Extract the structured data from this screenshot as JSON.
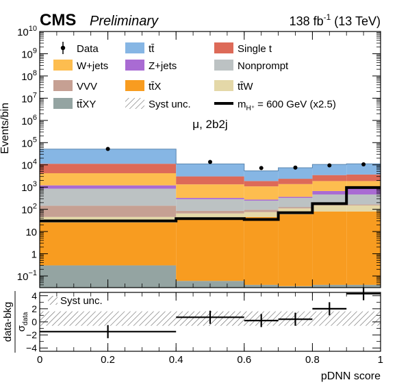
{
  "header": {
    "experiment": "CMS",
    "status": "Preliminary",
    "lumi_value": "138 fb",
    "lumi_exp": "-1",
    "energy": "(13 TeV)"
  },
  "chart_data": [
    {
      "type": "bar",
      "panel": "main",
      "stacked": true,
      "log_y": true,
      "ylabel": "Events/bin",
      "ylim": [
        0.03,
        10000000000.0
      ],
      "xlim": [
        0,
        1
      ],
      "annotation": "μ, 2b2j",
      "bin_edges": [
        0,
        0.4,
        0.6,
        0.7,
        0.8,
        0.9,
        1.0
      ],
      "y_ticks": [
        {
          "value": 0.1,
          "base": "10",
          "exp": "−1"
        },
        {
          "value": 1,
          "base": "1",
          "exp": ""
        },
        {
          "value": 10,
          "base": "10",
          "exp": ""
        },
        {
          "value": 100,
          "base": "10",
          "exp": "2"
        },
        {
          "value": 1000,
          "base": "10",
          "exp": "3"
        },
        {
          "value": 10000,
          "base": "10",
          "exp": "4"
        },
        {
          "value": 100000,
          "base": "10",
          "exp": "5"
        },
        {
          "value": 1000000,
          "base": "10",
          "exp": "6"
        },
        {
          "value": 10000000,
          "base": "10",
          "exp": "7"
        },
        {
          "value": 100000000,
          "base": "10",
          "exp": "8"
        },
        {
          "value": 1000000000,
          "base": "10",
          "exp": "9"
        },
        {
          "value": 10000000000,
          "base": "10",
          "exp": "10"
        }
      ],
      "stack_order": [
        "tt̄XY",
        "tt̄X",
        "tt̄W",
        "VVV",
        "Nonprompt",
        "Z+jets",
        "W+jets",
        "Single t",
        "tt̄"
      ],
      "series": [
        {
          "name": "tt̄XY",
          "color": "#94a4a2",
          "values": [
            0.3,
            0.06,
            0.04,
            0.035,
            0.04,
            0.04
          ]
        },
        {
          "name": "tt̄X",
          "color": "#f89c20",
          "values": [
            25,
            35,
            45,
            60,
            80,
            80
          ]
        },
        {
          "name": "tt̄W",
          "color": "#e4d8a8",
          "values": [
            20,
            30,
            30,
            50,
            70,
            70
          ]
        },
        {
          "name": "VVV",
          "color": "#c6a093",
          "values": [
            100,
            20,
            20,
            15,
            15,
            15
          ]
        },
        {
          "name": "Nonprompt",
          "color": "#bcc2c3",
          "values": [
            700,
            200,
            150,
            200,
            300,
            300
          ]
        },
        {
          "name": "Z+jets",
          "color": "#a96bd3",
          "values": [
            350,
            40,
            30,
            40,
            200,
            400
          ]
        },
        {
          "name": "W+jets",
          "color": "#fdbd4f",
          "values": [
            3000,
            1000,
            800,
            1000,
            1200,
            1000
          ]
        },
        {
          "name": "Single t",
          "color": "#dd6a58",
          "values": [
            7000,
            1700,
            800,
            1000,
            1600,
            1800
          ]
        },
        {
          "name": "tt̄",
          "color": "#86b6e4",
          "values": [
            40000,
            8000,
            3500,
            5000,
            7000,
            7500
          ]
        }
      ],
      "signal": {
        "name": "m_H⁺ = 600 GeV (x2.5)",
        "color": "#000000",
        "values": [
          30,
          38,
          35,
          70,
          180,
          950
        ]
      },
      "data": {
        "name": "Data",
        "x": [
          0.2,
          0.5,
          0.65,
          0.75,
          0.85,
          0.95
        ],
        "values": [
          52000,
          13500,
          7200,
          7500,
          9500,
          10500
        ]
      },
      "legend": [
        {
          "label": "Data",
          "kind": "data"
        },
        {
          "label": "tt̄",
          "kind": "fill",
          "color": "#86b6e4"
        },
        {
          "label": "Single t",
          "kind": "fill",
          "color": "#dd6a58"
        },
        {
          "label": "W+jets",
          "kind": "fill",
          "color": "#fdbd4f"
        },
        {
          "label": "Z+jets",
          "kind": "fill",
          "color": "#a96bd3"
        },
        {
          "label": "Nonprompt",
          "kind": "fill",
          "color": "#bcc2c3"
        },
        {
          "label": "VVV",
          "kind": "fill",
          "color": "#c6a093"
        },
        {
          "label": "tt̄X",
          "kind": "fill",
          "color": "#f89c20"
        },
        {
          "label": "tt̄W",
          "kind": "fill",
          "color": "#e4d8a8"
        },
        {
          "label": "tt̄XY",
          "kind": "fill",
          "color": "#94a4a2"
        },
        {
          "label": "Syst unc.",
          "kind": "hatch"
        },
        {
          "label": "m",
          "sub": "H⁺",
          "suffix": " = 600 GeV (x2.5)",
          "kind": "line"
        }
      ]
    },
    {
      "type": "scatter",
      "panel": "ratio",
      "xlabel": "pDNN score",
      "ylabel_top": "data-bkg",
      "ylabel_bottom_sym": "σ",
      "ylabel_bottom_sub": "data",
      "ylim": [
        -4.5,
        4.5
      ],
      "y_ticks": [
        -4,
        -2,
        0,
        2,
        4
      ],
      "y_tick_labels": [
        "−4",
        "−2",
        "0",
        "2",
        "4"
      ],
      "x_ticks": [
        0,
        0.2,
        0.4,
        0.6,
        0.8,
        1.0
      ],
      "x_tick_labels": [
        "0",
        "0.2",
        "0.4",
        "0.6",
        "0.8",
        "1"
      ],
      "syst_band": [
        -0.6,
        1.6
      ],
      "syst_label": "Syst unc.",
      "points": [
        {
          "x": 0.2,
          "xlo": 0.0,
          "xhi": 0.4,
          "y": -1.5,
          "err": 1.0
        },
        {
          "x": 0.5,
          "xlo": 0.4,
          "xhi": 0.6,
          "y": 0.7,
          "err": 1.0
        },
        {
          "x": 0.65,
          "xlo": 0.6,
          "xhi": 0.7,
          "y": 0.2,
          "err": 1.0
        },
        {
          "x": 0.75,
          "xlo": 0.7,
          "xhi": 0.8,
          "y": 0.4,
          "err": 1.0
        },
        {
          "x": 0.85,
          "xlo": 0.8,
          "xhi": 0.9,
          "y": 2.0,
          "err": 1.0
        },
        {
          "x": 0.95,
          "xlo": 0.9,
          "xhi": 1.0,
          "y": 4.3,
          "err": 1.0
        }
      ]
    }
  ]
}
